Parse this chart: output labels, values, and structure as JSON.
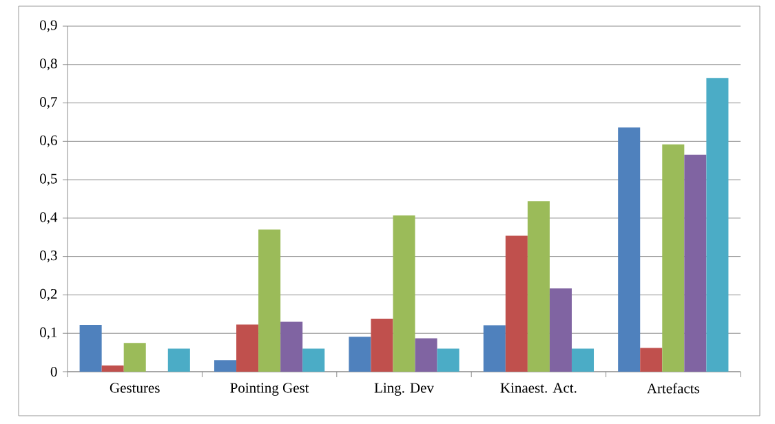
{
  "chart_data": {
    "type": "bar",
    "categories": [
      "Gestures",
      "Pointing Gest",
      "Ling. Dev",
      "Kinaest. Act.",
      "Artefacts"
    ],
    "series": [
      {
        "color": "#4f81bd",
        "values": [
          0.122,
          0.03,
          0.091,
          0.121,
          0.636
        ]
      },
      {
        "color": "#c0504d",
        "values": [
          0.016,
          0.123,
          0.138,
          0.354,
          0.062
        ]
      },
      {
        "color": "#9bbb59",
        "values": [
          0.075,
          0.37,
          0.407,
          0.444,
          0.592
        ]
      },
      {
        "color": "#8064a2",
        "values": [
          0,
          0.13,
          0.087,
          0.217,
          0.565
        ]
      },
      {
        "color": "#4bacc6",
        "values": [
          0.06,
          0.06,
          0.06,
          0.06,
          0.765
        ]
      }
    ],
    "ylim": [
      0,
      0.9
    ],
    "yticks": [
      {
        "value": 0,
        "label": "0"
      },
      {
        "value": 0.1,
        "label": "0,1"
      },
      {
        "value": 0.2,
        "label": "0,2"
      },
      {
        "value": 0.3,
        "label": "0,3"
      },
      {
        "value": 0.4,
        "label": "0,4"
      },
      {
        "value": 0.5,
        "label": "0,5"
      },
      {
        "value": 0.6,
        "label": "0,6"
      },
      {
        "value": 0.7,
        "label": "0,7"
      },
      {
        "value": 0.8,
        "label": "0,8"
      },
      {
        "value": 0.9,
        "label": "0,9"
      }
    ],
    "grid": "y"
  }
}
